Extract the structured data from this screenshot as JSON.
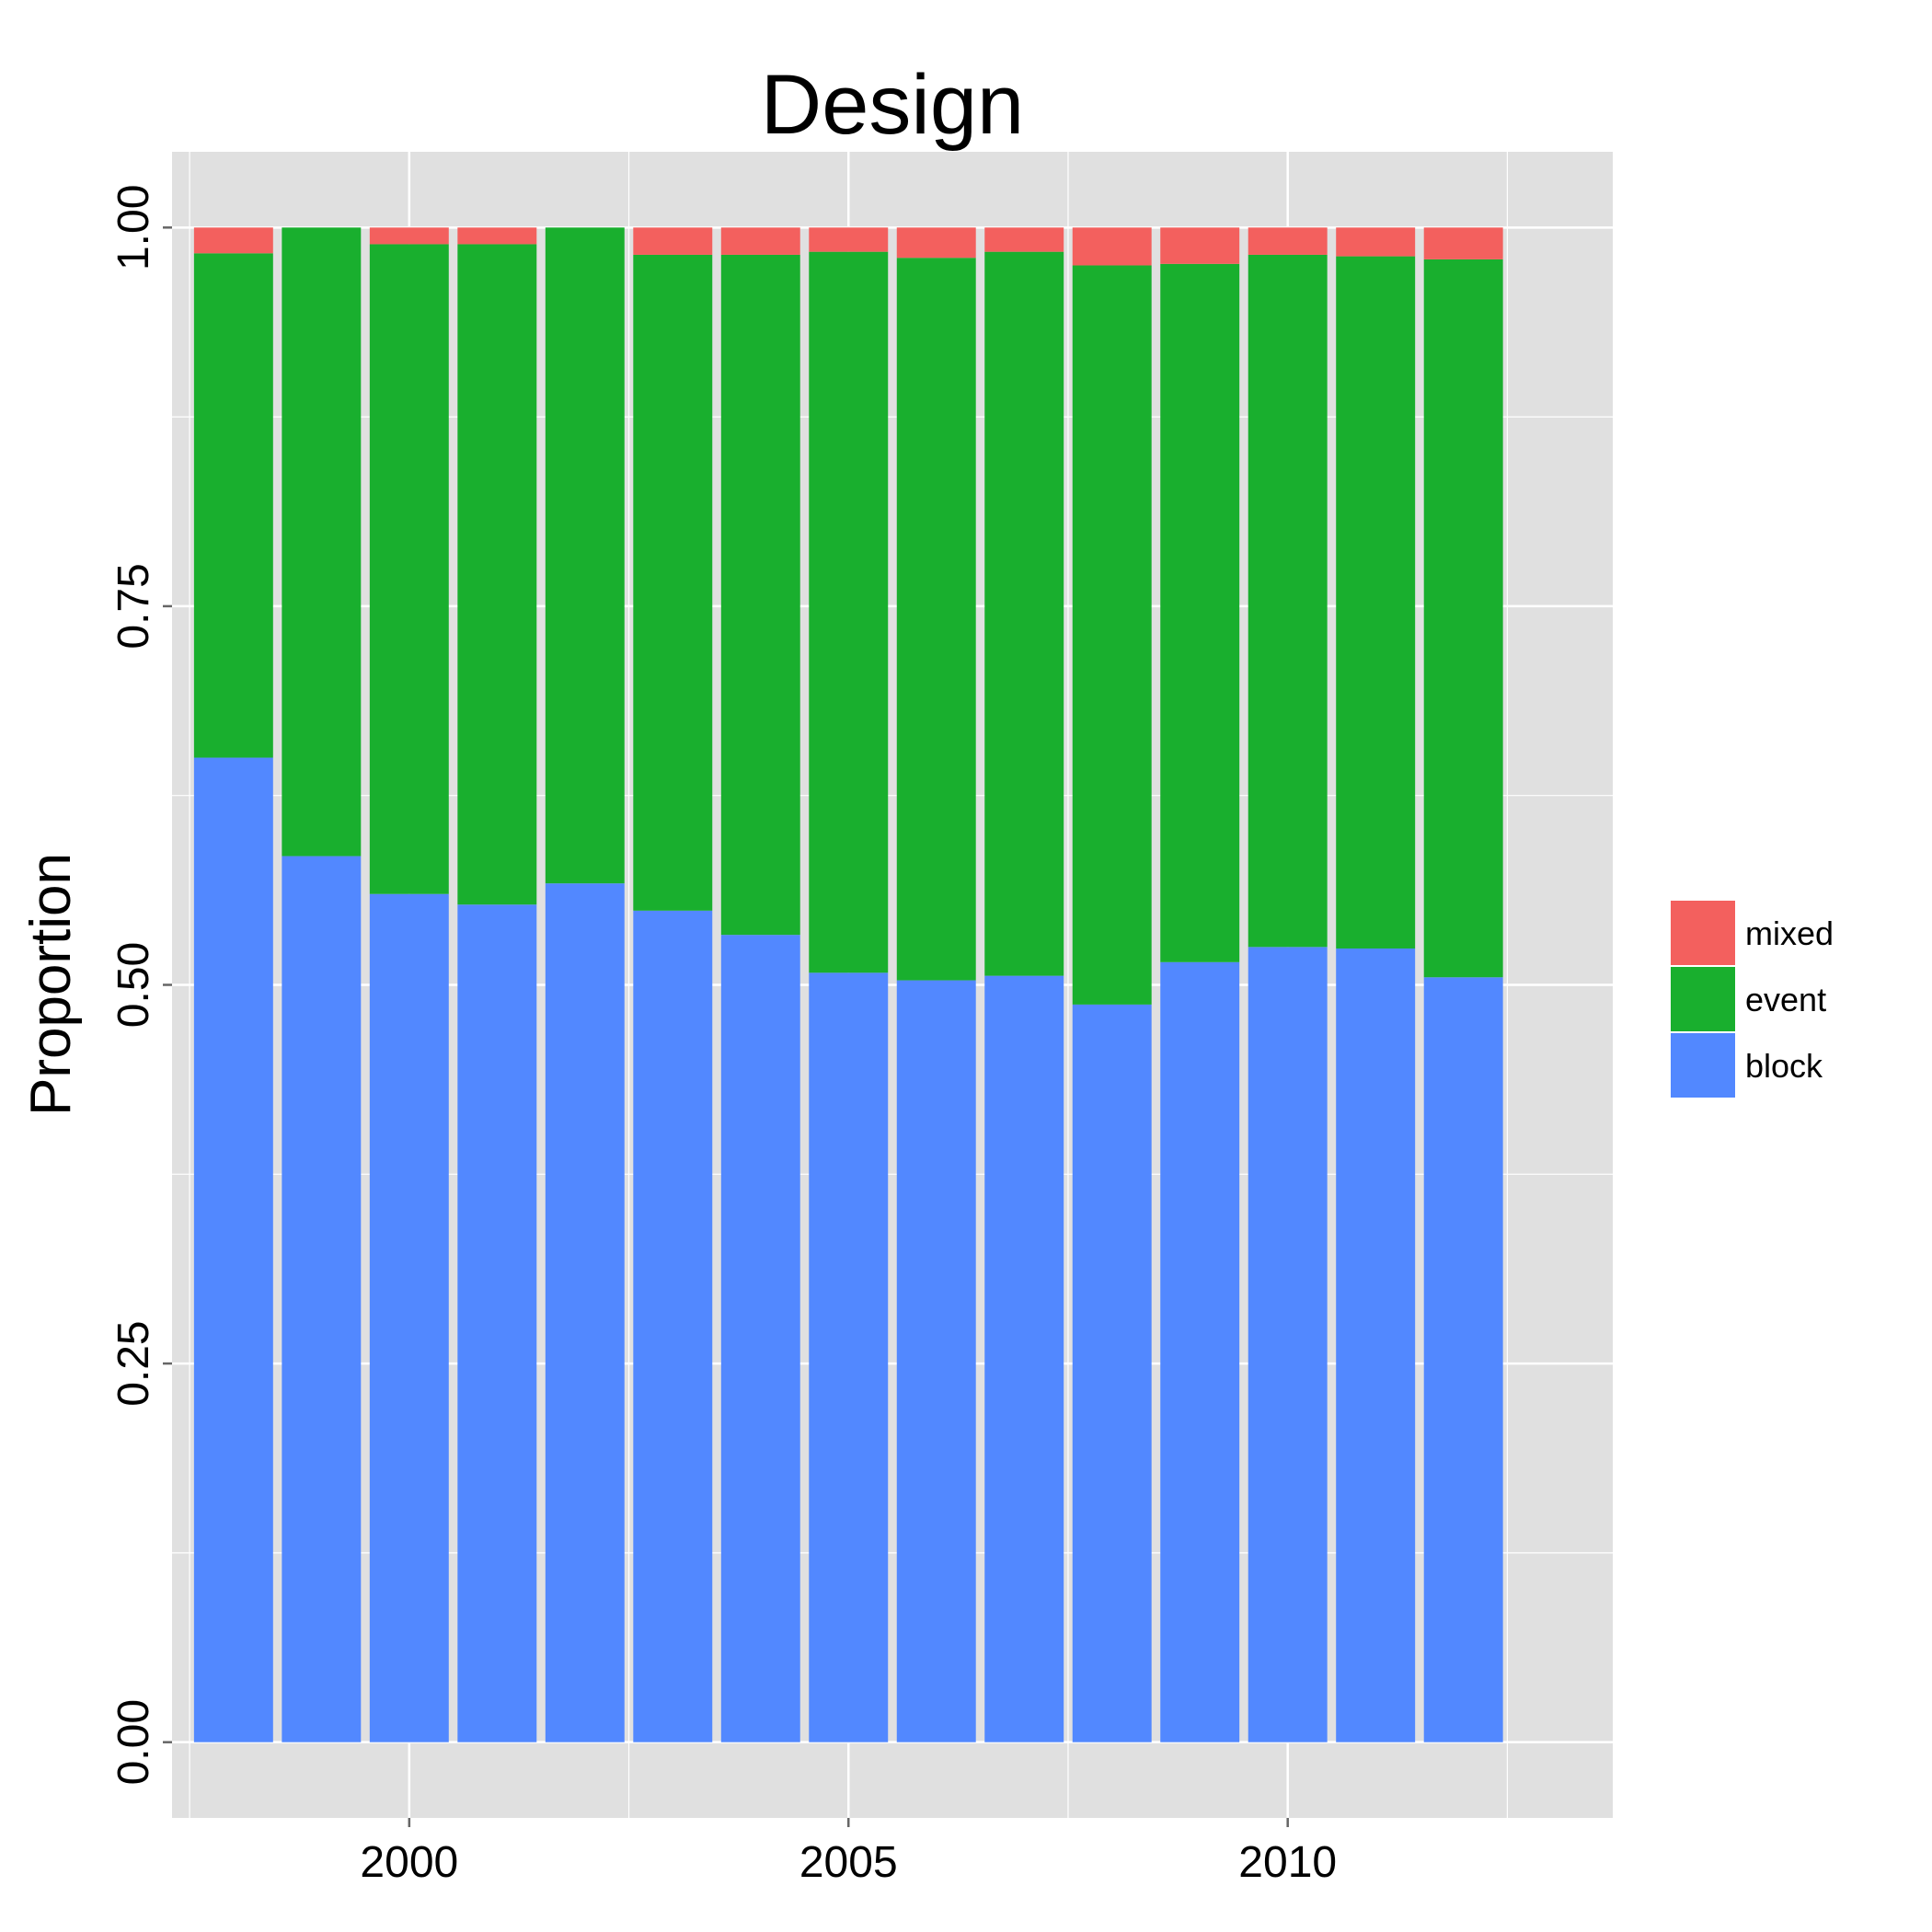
{
  "chart_data": {
    "type": "bar",
    "stacked": true,
    "title": "Design",
    "xlabel": "",
    "ylabel": "Proportion",
    "x": [
      1998,
      1999,
      2000,
      2001,
      2002,
      2003,
      2004,
      2005,
      2006,
      2007,
      2008,
      2009,
      2010,
      2011,
      2012
    ],
    "x_ticks": [
      2000,
      2005,
      2010
    ],
    "x_tick_labels": [
      "2000",
      "2005",
      "2010"
    ],
    "xlim": [
      1997.3,
      2013.7
    ],
    "ylim": [
      -0.05,
      1.05
    ],
    "y_ticks": [
      0,
      0.25,
      0.5,
      0.75,
      1
    ],
    "y_tick_labels": [
      "0.00",
      "0.25",
      "0.50",
      "0.75",
      "1.00"
    ],
    "grid": true,
    "legend_position": "right",
    "series": [
      {
        "name": "block",
        "color": "#5288FF",
        "values": [
          0.65,
          0.585,
          0.56,
          0.553,
          0.567,
          0.549,
          0.533,
          0.508,
          0.503,
          0.506,
          0.487,
          0.515,
          0.525,
          0.524,
          0.505
        ]
      },
      {
        "name": "event",
        "color": "#19AF2E",
        "values": [
          0.333,
          0.415,
          0.429,
          0.436,
          0.433,
          0.433,
          0.449,
          0.476,
          0.477,
          0.478,
          0.488,
          0.461,
          0.457,
          0.457,
          0.474
        ]
      },
      {
        "name": "mixed",
        "color": "#F3605E",
        "values": [
          0.017,
          0.0,
          0.011,
          0.011,
          0.0,
          0.018,
          0.018,
          0.016,
          0.02,
          0.016,
          0.025,
          0.024,
          0.018,
          0.019,
          0.021
        ]
      }
    ],
    "legend_order": [
      "mixed",
      "event",
      "block"
    ],
    "panel_background": "#E0E0E0",
    "grid_color": "#FFFFFF"
  }
}
